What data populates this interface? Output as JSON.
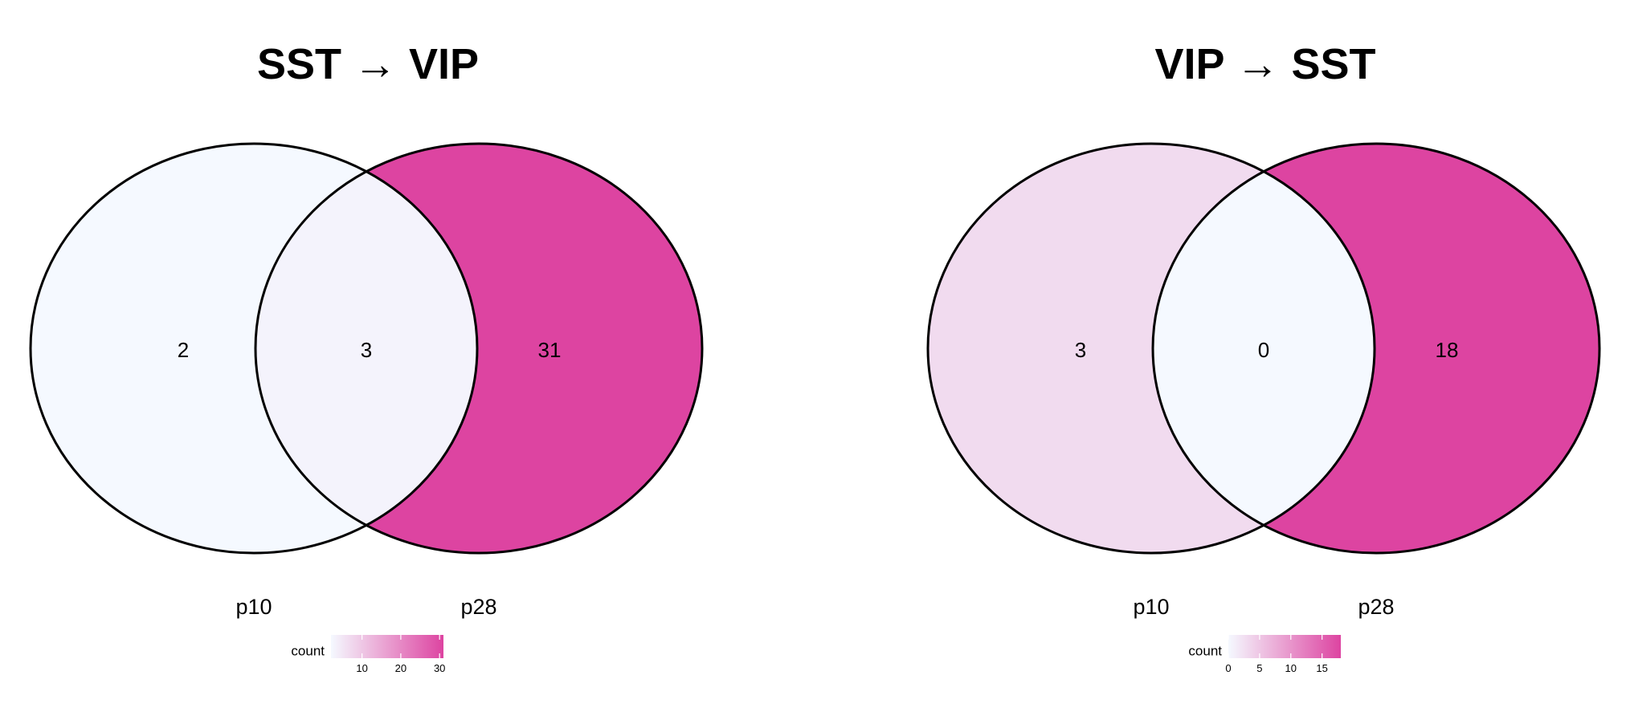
{
  "chart_data": [
    {
      "type": "venn",
      "title": "SST →  VIP",
      "sets": [
        "p10",
        "p28"
      ],
      "regions": [
        {
          "sets": [
            "p10"
          ],
          "label": "2",
          "value": 2
        },
        {
          "sets": [
            "p10",
            "p28"
          ],
          "label": "3",
          "value": 3
        },
        {
          "sets": [
            "p28"
          ],
          "label": "31",
          "value": 31
        }
      ],
      "legend": {
        "title": "count",
        "ticks": [
          {
            "value": 10,
            "label": "10"
          },
          {
            "value": 20,
            "label": "20"
          },
          {
            "value": 30,
            "label": "30"
          }
        ],
        "domain": [
          2,
          31
        ]
      }
    },
    {
      "type": "venn",
      "title": "VIP →  SST",
      "sets": [
        "p10",
        "p28"
      ],
      "regions": [
        {
          "sets": [
            "p10"
          ],
          "label": "3",
          "value": 3
        },
        {
          "sets": [
            "p10",
            "p28"
          ],
          "label": "0",
          "value": 0
        },
        {
          "sets": [
            "p28"
          ],
          "label": "18",
          "value": 18
        }
      ],
      "legend": {
        "title": "count",
        "ticks": [
          {
            "value": 0,
            "label": "0"
          },
          {
            "value": 5,
            "label": "5"
          },
          {
            "value": 10,
            "label": "10"
          },
          {
            "value": 15,
            "label": "15"
          }
        ],
        "domain": [
          0,
          18
        ]
      }
    }
  ],
  "colors": {
    "scale_low": "#f5f9ff",
    "scale_high": "#dd44a1",
    "outline": "#000000"
  }
}
